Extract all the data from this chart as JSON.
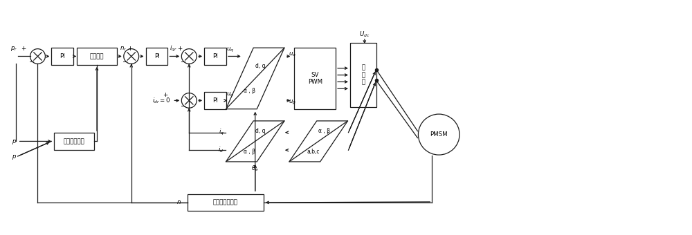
{
  "bg_color": "#ffffff",
  "line_color": "#1a1a1a",
  "box_edge": "#1a1a1a",
  "text_color": "#000000",
  "figsize": [
    10.0,
    3.4
  ],
  "dpi": 100,
  "xlim": [
    0,
    100
  ],
  "ylim": [
    0,
    34
  ],
  "lw": 0.9,
  "fs": 6.2,
  "fs_small": 5.5
}
